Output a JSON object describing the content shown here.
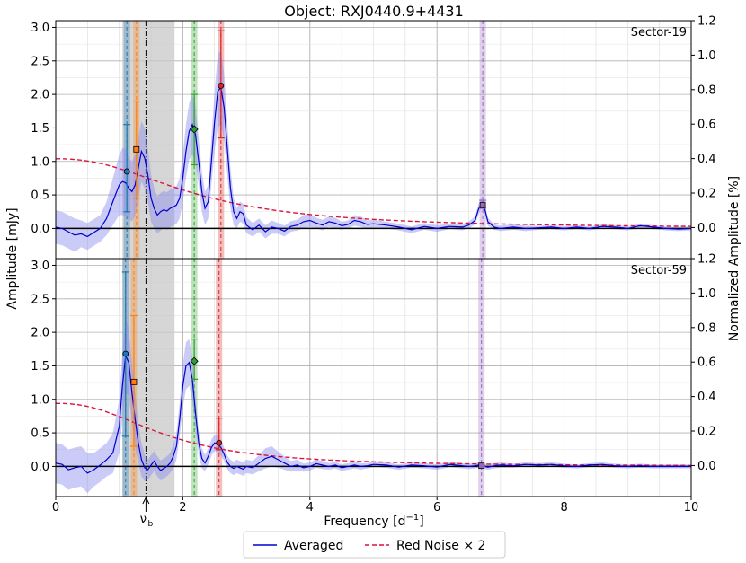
{
  "chart_data": {
    "type": "line",
    "title": "Object: RXJ0440.9+4431",
    "xlabel": "Frequency [d$^{-1}$]",
    "xlabel_main": "Frequency [d",
    "xlabel_sup": "−1",
    "xlabel_close": "]",
    "ylabel_left": "Amplitude [mJy]",
    "ylabel_right": "Normalized Amplitude [%]",
    "xlim": [
      0,
      10
    ],
    "xticks": [
      "0",
      "2",
      "4",
      "6",
      "8",
      "10"
    ],
    "nu_b_marker": {
      "x": 1.42,
      "label": "ν",
      "sub": "b"
    },
    "grey_band": [
      1.05,
      1.87
    ],
    "legend": {
      "placement": "bottom-center",
      "entries": [
        {
          "label": "Averaged",
          "color": "#0000cd",
          "style": "solid"
        },
        {
          "label": "Red Noise × 2",
          "color": "#dc143c",
          "style": "dashed"
        }
      ]
    },
    "colors": {
      "line": "#0000cd",
      "band": "#8c8cf0",
      "red_noise": "#dc143c",
      "blue": "#1f77b4",
      "orange": "#ff7f0e",
      "green": "#2ca02c",
      "red": "#d62728",
      "purple": "#9467bd",
      "grey": "#c8c8c8"
    },
    "panels": [
      {
        "label": "Sector-19",
        "ylim_left": [
          -0.45,
          3.1
        ],
        "yticks_left": [
          "0.0",
          "0.5",
          "1.0",
          "1.5",
          "2.0",
          "2.5",
          "3.0"
        ],
        "ylim_right": [
          -0.18,
          1.2
        ],
        "yticks_right": [
          "0.0",
          "0.2",
          "0.4",
          "0.6",
          "0.8",
          "1.0",
          "1.2"
        ],
        "red_noise": {
          "amp": 1.04,
          "tau": 0.19,
          "a": 2.3
        },
        "averaged": {
          "x": [
            0,
            0.1,
            0.2,
            0.3,
            0.4,
            0.5,
            0.6,
            0.7,
            0.8,
            0.9,
            1.0,
            1.05,
            1.1,
            1.15,
            1.2,
            1.25,
            1.3,
            1.35,
            1.4,
            1.45,
            1.5,
            1.55,
            1.6,
            1.65,
            1.7,
            1.75,
            1.8,
            1.85,
            1.9,
            1.95,
            2.0,
            2.05,
            2.1,
            2.15,
            2.2,
            2.25,
            2.3,
            2.35,
            2.4,
            2.45,
            2.5,
            2.55,
            2.6,
            2.65,
            2.7,
            2.75,
            2.8,
            2.85,
            2.9,
            2.95,
            3.0,
            3.1,
            3.2,
            3.3,
            3.4,
            3.5,
            3.6,
            3.7,
            3.8,
            3.9,
            4.0,
            4.1,
            4.2,
            4.3,
            4.4,
            4.5,
            4.6,
            4.7,
            4.8,
            4.9,
            5.0,
            5.2,
            5.4,
            5.6,
            5.8,
            6.0,
            6.2,
            6.4,
            6.5,
            6.6,
            6.65,
            6.7,
            6.75,
            6.8,
            6.9,
            7.0,
            7.2,
            7.4,
            7.6,
            7.8,
            8.0,
            8.2,
            8.4,
            8.6,
            8.8,
            9.0,
            9.2,
            9.4,
            9.6,
            9.8,
            10.0
          ],
          "y": [
            0.02,
            0.0,
            -0.05,
            -0.1,
            -0.08,
            -0.12,
            -0.06,
            0.0,
            0.15,
            0.4,
            0.65,
            0.7,
            0.68,
            0.6,
            0.55,
            0.65,
            0.9,
            1.15,
            1.05,
            0.8,
            0.45,
            0.3,
            0.2,
            0.25,
            0.28,
            0.26,
            0.3,
            0.32,
            0.35,
            0.45,
            0.75,
            1.15,
            1.45,
            1.55,
            1.4,
            1.0,
            0.55,
            0.3,
            0.4,
            1.0,
            1.6,
            2.05,
            2.1,
            1.8,
            1.2,
            0.6,
            0.25,
            0.15,
            0.25,
            0.22,
            0.05,
            -0.02,
            0.05,
            -0.05,
            0.02,
            0.0,
            -0.04,
            0.03,
            0.05,
            0.1,
            0.12,
            0.08,
            0.05,
            0.1,
            0.08,
            0.04,
            0.06,
            0.12,
            0.1,
            0.06,
            0.07,
            0.05,
            0.02,
            -0.02,
            0.03,
            0.0,
            0.03,
            0.02,
            0.05,
            0.12,
            0.28,
            0.38,
            0.3,
            0.1,
            0.02,
            0.0,
            0.02,
            0.0,
            0.01,
            0.02,
            0.0,
            0.02,
            0.0,
            0.03,
            0.02,
            0.0,
            0.04,
            0.02,
            0.0,
            -0.01,
            0.0
          ],
          "band": [
            0.25,
            0.25,
            0.25,
            0.25,
            0.2,
            0.2,
            0.2,
            0.2,
            0.25,
            0.35,
            0.45,
            0.5,
            0.5,
            0.45,
            0.45,
            0.45,
            0.45,
            0.45,
            0.45,
            0.4,
            0.35,
            0.3,
            0.28,
            0.28,
            0.28,
            0.28,
            0.28,
            0.28,
            0.28,
            0.3,
            0.35,
            0.4,
            0.42,
            0.45,
            0.42,
            0.35,
            0.3,
            0.25,
            0.25,
            0.35,
            0.45,
            0.55,
            0.55,
            0.5,
            0.4,
            0.3,
            0.2,
            0.15,
            0.15,
            0.15,
            0.12,
            0.1,
            0.1,
            0.1,
            0.1,
            0.08,
            0.08,
            0.08,
            0.08,
            0.1,
            0.1,
            0.08,
            0.08,
            0.08,
            0.08,
            0.06,
            0.06,
            0.08,
            0.08,
            0.06,
            0.06,
            0.05,
            0.05,
            0.05,
            0.05,
            0.05,
            0.04,
            0.05,
            0.05,
            0.06,
            0.08,
            0.08,
            0.08,
            0.06,
            0.04,
            0.04,
            0.04,
            0.04,
            0.03,
            0.03,
            0.03,
            0.03,
            0.03,
            0.03,
            0.03,
            0.03,
            0.03,
            0.03,
            0.03,
            0.03,
            0.03
          ]
        },
        "peaks": [
          {
            "color": "blue",
            "x": 1.12,
            "y": 0.85,
            "marker": "circle",
            "err": [
              0.25,
              1.55
            ]
          },
          {
            "color": "orange",
            "x": 1.27,
            "y": 1.18,
            "marker": "square",
            "err": [
              0.45,
              1.9
            ]
          },
          {
            "color": "green",
            "x": 2.18,
            "y": 1.48,
            "marker": "diamond",
            "err": [
              0.95,
              2.0
            ]
          },
          {
            "color": "red",
            "x": 2.6,
            "y": 2.13,
            "marker": "circle",
            "err": [
              1.35,
              2.95
            ]
          },
          {
            "color": "purple",
            "x": 6.72,
            "y": 0.35,
            "marker": "square",
            "err": [
              0.3,
              0.42
            ]
          }
        ]
      },
      {
        "label": "Sector-59",
        "ylim_left": [
          -0.45,
          3.1
        ],
        "yticks_left": [
          "0.0",
          "0.5",
          "1.0",
          "1.5",
          "2.0",
          "2.5",
          "3.0"
        ],
        "ylim_right": [
          -0.18,
          1.2
        ],
        "yticks_right": [
          "0.0",
          "0.2",
          "0.4",
          "0.6",
          "0.8",
          "1.0",
          "1.2"
        ],
        "red_noise": {
          "amp": 0.94,
          "tau": 0.24,
          "a": 2.4
        },
        "averaged": {
          "x": [
            0,
            0.1,
            0.2,
            0.3,
            0.4,
            0.5,
            0.6,
            0.7,
            0.8,
            0.9,
            1.0,
            1.05,
            1.1,
            1.15,
            1.2,
            1.25,
            1.3,
            1.35,
            1.4,
            1.45,
            1.5,
            1.55,
            1.6,
            1.65,
            1.7,
            1.75,
            1.8,
            1.85,
            1.9,
            1.95,
            2.0,
            2.05,
            2.1,
            2.15,
            2.2,
            2.25,
            2.3,
            2.35,
            2.4,
            2.45,
            2.5,
            2.55,
            2.6,
            2.65,
            2.7,
            2.75,
            2.8,
            2.85,
            2.9,
            2.95,
            3.0,
            3.1,
            3.2,
            3.3,
            3.4,
            3.5,
            3.6,
            3.7,
            3.8,
            3.9,
            4.0,
            4.1,
            4.2,
            4.3,
            4.4,
            4.5,
            4.6,
            4.7,
            4.8,
            4.9,
            5.0,
            5.2,
            5.4,
            5.6,
            5.8,
            6.0,
            6.2,
            6.4,
            6.5,
            6.6,
            6.65,
            6.7,
            6.75,
            6.8,
            6.9,
            7.0,
            7.2,
            7.4,
            7.6,
            7.8,
            8.0,
            8.2,
            8.4,
            8.6,
            8.8,
            9.0,
            9.2,
            9.4,
            9.6,
            9.8,
            10.0
          ],
          "y": [
            0.05,
            0.03,
            -0.05,
            -0.02,
            0.0,
            -0.1,
            -0.05,
            0.02,
            0.1,
            0.2,
            0.6,
            1.2,
            1.65,
            1.55,
            1.1,
            0.7,
            0.35,
            0.1,
            -0.02,
            -0.05,
            0.02,
            0.08,
            0.0,
            -0.06,
            -0.03,
            0.0,
            0.05,
            0.15,
            0.3,
            0.7,
            1.2,
            1.5,
            1.55,
            1.3,
            0.8,
            0.35,
            0.12,
            0.05,
            0.15,
            0.28,
            0.35,
            0.33,
            0.28,
            0.18,
            0.06,
            0.0,
            -0.03,
            0.0,
            -0.02,
            -0.04,
            0.0,
            -0.02,
            0.05,
            0.12,
            0.15,
            0.1,
            0.05,
            0.0,
            0.02,
            -0.02,
            0.0,
            0.04,
            0.02,
            0.0,
            0.02,
            -0.02,
            0.0,
            0.02,
            0.0,
            0.01,
            0.03,
            0.02,
            -0.01,
            0.02,
            0.01,
            -0.01,
            0.03,
            0.01,
            0.0,
            0.01,
            0.02,
            0.01,
            0.0,
            -0.01,
            0.01,
            0.02,
            0.01,
            0.03,
            0.02,
            0.03,
            0.01,
            0.0,
            0.02,
            0.03,
            0.01,
            0.0,
            0.01,
            0.0,
            0.0,
            0.0,
            0.0
          ],
          "band": [
            0.3,
            0.3,
            0.3,
            0.3,
            0.3,
            0.3,
            0.25,
            0.25,
            0.25,
            0.3,
            0.4,
            0.5,
            0.55,
            0.5,
            0.45,
            0.4,
            0.3,
            0.25,
            0.2,
            0.15,
            0.15,
            0.15,
            0.15,
            0.15,
            0.15,
            0.15,
            0.15,
            0.18,
            0.2,
            0.25,
            0.32,
            0.35,
            0.35,
            0.32,
            0.25,
            0.18,
            0.15,
            0.12,
            0.12,
            0.12,
            0.12,
            0.12,
            0.12,
            0.1,
            0.1,
            0.1,
            0.1,
            0.1,
            0.1,
            0.1,
            0.1,
            0.1,
            0.12,
            0.15,
            0.15,
            0.12,
            0.1,
            0.08,
            0.08,
            0.06,
            0.06,
            0.06,
            0.06,
            0.05,
            0.05,
            0.05,
            0.05,
            0.05,
            0.05,
            0.04,
            0.04,
            0.04,
            0.04,
            0.04,
            0.04,
            0.04,
            0.04,
            0.04,
            0.04,
            0.04,
            0.04,
            0.04,
            0.04,
            0.04,
            0.04,
            0.04,
            0.03,
            0.03,
            0.03,
            0.03,
            0.03,
            0.03,
            0.03,
            0.03,
            0.03,
            0.03,
            0.03,
            0.03,
            0.03,
            0.03,
            0.03
          ]
        },
        "peaks": [
          {
            "color": "blue",
            "x": 1.1,
            "y": 1.68,
            "marker": "circle",
            "err": [
              0.45,
              2.9
            ]
          },
          {
            "color": "orange",
            "x": 1.23,
            "y": 1.26,
            "marker": "square",
            "err": [
              0.3,
              2.25
            ]
          },
          {
            "color": "green",
            "x": 2.18,
            "y": 1.57,
            "marker": "diamond",
            "err": [
              1.3,
              1.9
            ]
          },
          {
            "color": "red",
            "x": 2.57,
            "y": 0.35,
            "marker": "circle",
            "err": [
              0.25,
              0.72
            ]
          },
          {
            "color": "purple",
            "x": 6.7,
            "y": 0.01,
            "marker": "square",
            "err": [
              0.0,
              0.03
            ]
          }
        ]
      }
    ]
  }
}
